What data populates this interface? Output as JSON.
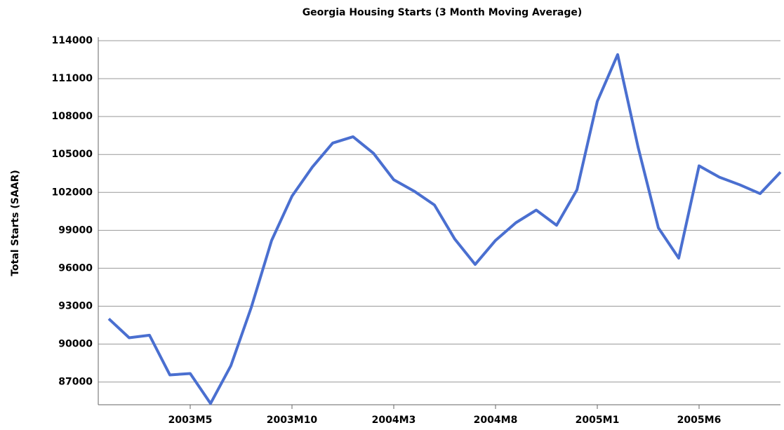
{
  "chart_data": {
    "type": "line",
    "title": "Georgia Housing Starts (3 Month Moving Average)",
    "y_label": "Total Starts (SAAR)",
    "categories": [
      null,
      null,
      null,
      null,
      "2003M5",
      null,
      null,
      null,
      null,
      "2003M10",
      null,
      null,
      null,
      null,
      "2004M3",
      null,
      null,
      null,
      null,
      "2004M8",
      null,
      null,
      null,
      null,
      "2005M1",
      null,
      null,
      null,
      null,
      "2005M6",
      null,
      null,
      null,
      null
    ],
    "series": [
      {
        "name": "Georgia Housing Starts",
        "color": "#4a6fd0",
        "values": [
          92000,
          90500,
          90700,
          87560,
          87670,
          85300,
          88300,
          92900,
          98200,
          101700,
          104000,
          105900,
          106400,
          105100,
          103000,
          102100,
          101000,
          98300,
          96300,
          98200,
          99600,
          100600,
          99400,
          102200,
          109200,
          112900,
          105600,
          99200,
          96800,
          104100,
          103200,
          102600,
          101900,
          103600
        ]
      }
    ],
    "ylim": [
      85200,
      114000
    ],
    "yticks": [
      87000,
      90000,
      93000,
      96000,
      99000,
      102000,
      105000,
      108000,
      111000,
      114000
    ],
    "grid": true
  }
}
